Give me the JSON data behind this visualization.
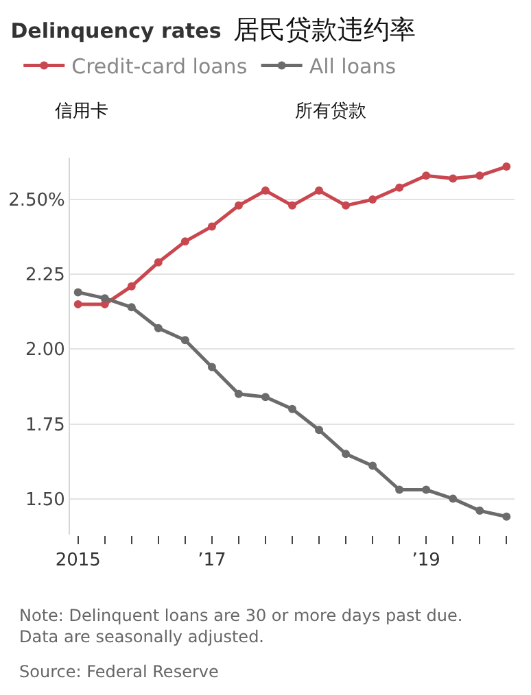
{
  "chart_data": {
    "type": "line",
    "title": "Delinquency rates",
    "subtitle": "居民贷款违约率",
    "categories": [
      "2015",
      null,
      null,
      null,
      null,
      "’17",
      null,
      null,
      null,
      null,
      null,
      null,
      null,
      "’19",
      null,
      null,
      null
    ],
    "series": [
      {
        "name": "Credit-card loans",
        "color": "#c9474f",
        "values": [
          2.15,
          2.15,
          2.21,
          2.29,
          2.36,
          2.41,
          2.48,
          2.53,
          2.48,
          2.53,
          2.48,
          2.5,
          2.54,
          2.58,
          2.57,
          2.58,
          2.61
        ]
      },
      {
        "name": "All loans",
        "color": "#6b6b6b",
        "values": [
          2.19,
          2.17,
          2.14,
          2.07,
          2.03,
          1.94,
          1.85,
          1.84,
          1.8,
          1.73,
          1.65,
          1.61,
          1.53,
          1.53,
          1.5,
          1.46,
          1.44
        ]
      }
    ],
    "ylim": [
      1.38,
      2.64
    ],
    "yticks": [
      {
        "value": 1.5,
        "label": "1.50"
      },
      1.75,
      {
        "value": 2,
        "label": "2.00"
      },
      2.25,
      {
        "value": 2.5,
        "label": "2.50%"
      }
    ],
    "grid": "y",
    "legend": "top left",
    "marker": "circle",
    "line_style": "solid",
    "annotations": [
      "信用卡",
      "所有贷款",
      "Note: Delinquent loans are 30 or more days past due.\nData are seasonally adjusted.",
      "Source: Federal Reserve"
    ]
  }
}
